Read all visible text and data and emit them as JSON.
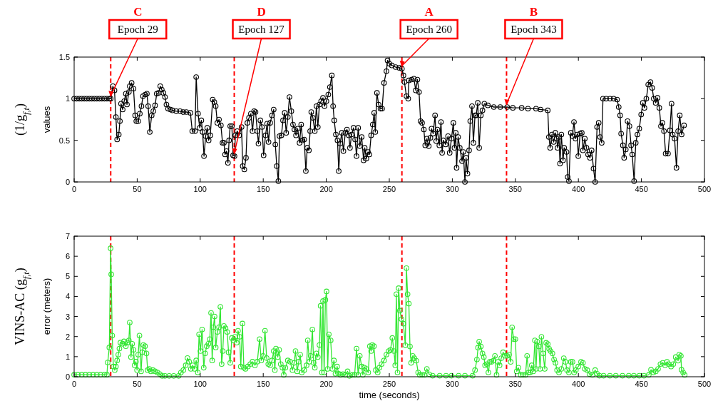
{
  "chart_data": [
    {
      "type": "line",
      "xlim": [
        0,
        500
      ],
      "xticks": [
        0,
        50,
        100,
        150,
        200,
        250,
        300,
        350,
        400,
        450,
        500
      ],
      "ylim": [
        0,
        1.5
      ],
      "yticks": [
        0,
        0.5,
        1,
        1.5
      ],
      "ylabel": "values",
      "marker": "circle",
      "line_style": "solid",
      "grid": false,
      "annotations": [
        "(1/g$_{f,t}$)",
        "C",
        "D",
        "A",
        "B",
        {
          "text": "Epoch 29",
          "x": 29,
          "y": 1
        },
        {
          "text": "Epoch 127",
          "x": 127,
          "y": 0.31
        },
        {
          "text": "Epoch 260",
          "x": 260,
          "y": 1.36
        },
        {
          "text": "Epoch 343",
          "x": 343,
          "y": 0.9
        }
      ],
      "ref_lines": [
        {
          "axis": "x",
          "value": 29,
          "color": "#ff0000",
          "line_style": "dashed"
        },
        {
          "axis": "x",
          "value": 127,
          "color": "#ff0000",
          "line_style": "dashed"
        },
        {
          "axis": "x",
          "value": 260,
          "color": "#ff0000",
          "line_style": "dashed"
        },
        {
          "axis": "x",
          "value": 343,
          "color": "#ff0000",
          "line_style": "dashed"
        }
      ],
      "series": [
        {
          "color": "#000000",
          "x": [
            0,
            2,
            4,
            6,
            8,
            10,
            12,
            14,
            16,
            18,
            20,
            22,
            24,
            26,
            28,
            29,
            30.7,
            32,
            33.1,
            34.1,
            35.4,
            36.3,
            37.2,
            38.5,
            39.7,
            41,
            41.9,
            43.4,
            44.1,
            45.6,
            47.1,
            48.4,
            49.3,
            50.8,
            52.1,
            53.4,
            54.6,
            56.4,
            57.7,
            58.7,
            60,
            61.5,
            62.8,
            64.2,
            65.5,
            67,
            68.3,
            69.5,
            70.8,
            72.1,
            73.2,
            74.5,
            76.4,
            78,
            81,
            84,
            86.6,
            89,
            92.2,
            93.7,
            95.9,
            96.8,
            98.3,
            99.6,
            100.9,
            101.9,
            103,
            104.3,
            105.6,
            106.7,
            108,
            109.9,
            111.2,
            112.3,
            113.6,
            114.9,
            116.4,
            117.7,
            118.8,
            119.7,
            120.9,
            122,
            122.9,
            123.8,
            125.1,
            126.1,
            127.2,
            127.9,
            129.4,
            130.9,
            132.8,
            133.7,
            135,
            136.3,
            137.4,
            138.7,
            140.2,
            141.5,
            142.8,
            143.9,
            145.3,
            146.2,
            147.7,
            149,
            150.3,
            151.8,
            153.1,
            154.2,
            155.5,
            157,
            158.3,
            159.6,
            160.7,
            162,
            162.9,
            164.4,
            165.7,
            167,
            168.2,
            169.5,
            170.8,
            172.3,
            173.6,
            174.7,
            176,
            177.3,
            178.8,
            180.1,
            181.2,
            182.5,
            183.8,
            184.9,
            186.2,
            187.2,
            188.1,
            189.4,
            190.9,
            192.2,
            193.3,
            194.6,
            195.9,
            197.4,
            198.6,
            200.1,
            201.6,
            202.9,
            204.4,
            205.4,
            206.3,
            207.6,
            208.9,
            209.9,
            211,
            212.3,
            213.6,
            215.1,
            216.4,
            217.9,
            218.8,
            220.1,
            221.6,
            222.9,
            224,
            225.3,
            226.6,
            228.1,
            229.6,
            230.5,
            231.8,
            233.1,
            234.2,
            235.6,
            236.9,
            238,
            238.9,
            240.2,
            241.5,
            243,
            244.3,
            245.8,
            247.7,
            248.6,
            250,
            252,
            255,
            258,
            260,
            261.2,
            262,
            263.6,
            265,
            265.5,
            267.7,
            269.5,
            271,
            272.3,
            273.6,
            274.8,
            276,
            277.4,
            278.5,
            279.8,
            281.3,
            282.6,
            283.5,
            284.8,
            286.3,
            287.2,
            288.2,
            289.7,
            291,
            291.9,
            292.8,
            294.7,
            296.6,
            297.9,
            299.3,
            300.8,
            301.7,
            302.7,
            303.4,
            304.6,
            305.9,
            307.7,
            308.7,
            310,
            310.9,
            312,
            313.3,
            314.2,
            315.6,
            316.7,
            318,
            318.9,
            320.2,
            321.3,
            322.6,
            323.9,
            325.4,
            328.2,
            332.9,
            338,
            343.5,
            348,
            355,
            360,
            366.4,
            370,
            375.7,
            376.6,
            377.6,
            379,
            380.4,
            381.7,
            382.8,
            383.5,
            384.6,
            385.4,
            386.5,
            387.8,
            388.7,
            390.6,
            391.5,
            392.5,
            394,
            395.2,
            396.5,
            397.7,
            399,
            399.9,
            401.4,
            402.7,
            403.6,
            405.1,
            406.4,
            407.7,
            409.2,
            410.5,
            412,
            413.3,
            414.8,
            416.1,
            417.2,
            418.5,
            419.5,
            422,
            425.1,
            428,
            430.7,
            432,
            433.1,
            433.9,
            435.3,
            436.3,
            437.6,
            439,
            440.5,
            441.8,
            442.7,
            444.2,
            445.5,
            446.8,
            448.3,
            449.8,
            451.1,
            452.4,
            453.9,
            455.4,
            457.2,
            458.5,
            459.8,
            461.3,
            462.8,
            464.2,
            465.5,
            466.6,
            467.9,
            469.2,
            471.1,
            472.6,
            473.9,
            474.8,
            476.3,
            477.8,
            479.1,
            480.4,
            481.9,
            483.8
          ],
          "values": [
            1,
            1,
            1,
            1,
            1,
            1,
            1,
            1,
            1,
            1,
            1,
            1,
            1,
            1,
            1,
            1,
            1.15,
            1.1,
            0.78,
            0.51,
            0.57,
            0.73,
            0.94,
            0.87,
            0.97,
            1.06,
            0.93,
            1.08,
            1.15,
            1.19,
            1.12,
            0.8,
            0.73,
            0.73,
            0.82,
            0.91,
            1.03,
            1.05,
            1.06,
            0.91,
            0.6,
            0.8,
            0.85,
            0.92,
            1.06,
            1.07,
            1.15,
            1.11,
            1.07,
            1.02,
            0.93,
            0.88,
            0.87,
            0.86,
            0.85,
            0.85,
            0.84,
            0.84,
            0.83,
            0.61,
            0.61,
            1.26,
            0.82,
            0.65,
            0.74,
            0.6,
            0.31,
            0.55,
            0.65,
            0.5,
            0.56,
            0.99,
            0.96,
            0.91,
            0.71,
            0.75,
            0.68,
            0.47,
            0.47,
            0.33,
            0.37,
            0.23,
            0.5,
            0.67,
            0.67,
            0.32,
            0.31,
            0.56,
            0.61,
            0.56,
            0.66,
            0.19,
            0.15,
            0.29,
            0.71,
            0.77,
            0.82,
            0.61,
            0.85,
            0.84,
            0.61,
            0.46,
            0.74,
            0.66,
            0.32,
            0.56,
            0.7,
            0.48,
            0.71,
            0.8,
            0.87,
            0.45,
            0.19,
            0.01,
            0.55,
            0.56,
            0.74,
            0.83,
            0.59,
            0.78,
            1.02,
            0.85,
            0.69,
            0.63,
            0.56,
            0.64,
            0.47,
            0.69,
            0.5,
            0.51,
            0.13,
            0.41,
            0.38,
            0.61,
            0.84,
            0.77,
            0.61,
            0.91,
            0.66,
            0.93,
            0.97,
            1.01,
            0.91,
            0.97,
            1.05,
            1.14,
            1.28,
            0.91,
            0.74,
            0.57,
            0.5,
            0.13,
            0.46,
            0.59,
            0.37,
            0.59,
            0.63,
            0.56,
            0.41,
            0.57,
            0.65,
            0.51,
            0.31,
            0.65,
            0.43,
            0.54,
            0.26,
            0.41,
            0.28,
            0.36,
            0.33,
            0.56,
            0.69,
            0.83,
            0.6,
            1.07,
            0.93,
            0.88,
            0.88,
            1.19,
            1.33,
            1.46,
            1.42,
            1.4,
            1.38,
            1.37,
            1.36,
            1.28,
            1.2,
            1.03,
            1.0,
            1.22,
            1.23,
            1.24,
            1.1,
            1.23,
            1.08,
            0.73,
            0.71,
            0.63,
            0.44,
            0.52,
            0.43,
            0.53,
            0.64,
            0.58,
            0.8,
            0.49,
            0.63,
            0.44,
            0.72,
            0.35,
            0.5,
            0.45,
            0.55,
            0.35,
            0.52,
            0.71,
            0.41,
            0.59,
            0.17,
            0.54,
            0.41,
            0.25,
            0.36,
            0,
            0.29,
            0.1,
            0.38,
            0.73,
            0.91,
            0.47,
            0.8,
            0.8,
            0.95,
            0.41,
            0.8,
            0.86,
            0.94,
            0.92,
            0.9,
            0.9,
            0.9,
            0.89,
            0.89,
            0.88,
            0.88,
            0.87,
            0.86,
            0.54,
            0.41,
            0.57,
            0.48,
            0.59,
            0.52,
            0.41,
            0.54,
            0.22,
            0.57,
            0.26,
            0.41,
            0.36,
            0.06,
            0.01,
            0.59,
            0.55,
            0.72,
            0.52,
            0.57,
            0.31,
            0.58,
            0.59,
            0.38,
            0.52,
            0.41,
            0.33,
            0.29,
            0.38,
            0.16,
            0,
            0.66,
            0.71,
            0.54,
            0.47,
            1.0,
            1.0,
            1.0,
            1.0,
            0.99,
            0.9,
            0.8,
            0.58,
            0.44,
            0.29,
            0.39,
            0.73,
            0.67,
            0.44,
            0.33,
            0.01,
            0.47,
            0.57,
            0.64,
            0.81,
            0.95,
            0.89,
            1.0,
            1.17,
            1.2,
            1.13,
            1.0,
            0.95,
            1.01,
            0.89,
            0.67,
            0.71,
            0.61,
            0.34,
            0.34,
            0.62,
            0.94,
            0.57,
            0.52,
            0.17,
            0.61,
            0.8,
            0.57,
            0.68
          ]
        }
      ]
    },
    {
      "type": "line",
      "xlim": [
        0,
        500
      ],
      "xticks": [
        0,
        50,
        100,
        150,
        200,
        250,
        300,
        350,
        400,
        450,
        500
      ],
      "ylim": [
        0,
        7
      ],
      "yticks": [
        0,
        1,
        2,
        3,
        4,
        5,
        6,
        7
      ],
      "xlabel": "time (seconds)",
      "ylabel": "error (meters)",
      "marker": "circle",
      "line_style": "solid",
      "grid": false,
      "annotations": [
        "VINS-AC (g$_{f,t}$)"
      ],
      "ref_lines": [
        {
          "axis": "x",
          "value": 29,
          "color": "#ff0000",
          "line_style": "dashed"
        },
        {
          "axis": "x",
          "value": 127,
          "color": "#ff0000",
          "line_style": "dashed"
        },
        {
          "axis": "x",
          "value": 260,
          "color": "#ff0000",
          "line_style": "dashed"
        },
        {
          "axis": "x",
          "value": 343,
          "color": "#ff0000",
          "line_style": "dashed"
        }
      ],
      "series": [
        {
          "color": "#33e633",
          "x": [
            0,
            3,
            6,
            9,
            12,
            15,
            18,
            21,
            24,
            26,
            26.6,
            27.9,
            28.9,
            29.4,
            30.2,
            31.1,
            32.2,
            33.1,
            34.1,
            35,
            35.9,
            36.7,
            38.2,
            39.5,
            41,
            42.3,
            43.4,
            44.1,
            45.1,
            46,
            47.1,
            48,
            49,
            49.9,
            50.8,
            51.8,
            53.1,
            54,
            54.9,
            56.2,
            57.4,
            58.3,
            59.6,
            60.9,
            62.4,
            64.2,
            66.1,
            68,
            69.8,
            72,
            75.4,
            79,
            82.9,
            84.7,
            86.6,
            88.5,
            89.9,
            91.2,
            92.6,
            94,
            95.5,
            96.8,
            98.1,
            99.1,
            100.2,
            101.5,
            102.8,
            103.9,
            105.2,
            106.5,
            107.6,
            108.6,
            109.5,
            110.4,
            111.4,
            112.3,
            113.6,
            114.9,
            116,
            117,
            117.9,
            118.8,
            120.1,
            121.4,
            122.5,
            123.8,
            125.1,
            126.3,
            127.6,
            128.9,
            130,
            131.3,
            132.2,
            133.5,
            134.6,
            135.9,
            137.8,
            139.7,
            141.5,
            143.4,
            145.3,
            147.1,
            148.4,
            149.9,
            151.4,
            152.7,
            154,
            155.5,
            157,
            158.3,
            159.2,
            160.1,
            161.5,
            162.6,
            163.9,
            165.2,
            166.3,
            167.6,
            169.5,
            171.3,
            173.2,
            174.5,
            175.6,
            176.9,
            178.2,
            179.3,
            180.6,
            182.5,
            184.4,
            185.3,
            186.6,
            187.7,
            189,
            190,
            190.9,
            192.2,
            193.3,
            194.6,
            195.5,
            196.5,
            197.4,
            198.3,
            199.3,
            200.2,
            201.1,
            202,
            203.5,
            204.8,
            206.1,
            207.3,
            208.6,
            209.9,
            211.4,
            213.2,
            215.1,
            216.9,
            218.4,
            220.7,
            222.5,
            224,
            225.3,
            226.6,
            228.1,
            229,
            230.3,
            231.8,
            233.3,
            234.6,
            235.6,
            236.5,
            237.8,
            239.3,
            240.8,
            242.1,
            243.9,
            245.8,
            247.7,
            249.5,
            250.9,
            252.4,
            253.7,
            254.7,
            255.6,
            256.5,
            257.4,
            258.4,
            259.7,
            261.2,
            262.7,
            263.6,
            264.5,
            265.5,
            266.4,
            267.3,
            268.6,
            269.9,
            271.4,
            272.9,
            274.2,
            276.1,
            277.9,
            279.8,
            281.7,
            284.4,
            290,
            295,
            299.3,
            305,
            310,
            316.1,
            318,
            319.5,
            320.4,
            321.3,
            322.6,
            323.9,
            325,
            326,
            327.3,
            328.6,
            329.7,
            331,
            332.5,
            333.8,
            335.1,
            336.2,
            337.5,
            338.8,
            340.3,
            341.8,
            343.5,
            345,
            346.3,
            347.4,
            348.7,
            350,
            351.1,
            352.4,
            354.3,
            356.1,
            358,
            359.3,
            360.4,
            361.7,
            363,
            364.2,
            365.5,
            366.4,
            367.3,
            368.6,
            369.6,
            370.7,
            372,
            373.3,
            374.4,
            375.7,
            376.8,
            377.9,
            379.4,
            380.7,
            381.8,
            383.1,
            384.6,
            386.5,
            388.4,
            389.7,
            391,
            392.5,
            394,
            395.3,
            396.6,
            398,
            399.9,
            402.1,
            403.6,
            405.1,
            407,
            408.8,
            411.1,
            413.3,
            414.8,
            416.7,
            420,
            425,
            429.7,
            435,
            440,
            444,
            448.3,
            452,
            455.8,
            457.6,
            459.5,
            461.4,
            463.2,
            465.1,
            466.9,
            468.8,
            470.3,
            471.6,
            473.5,
            475.3,
            477.2,
            479.1,
            480,
            481.3,
            481.8,
            483.1,
            484.3
          ],
          "values": [
            0.1,
            0.1,
            0.1,
            0.1,
            0.1,
            0.1,
            0.1,
            0.1,
            0.1,
            0.1,
            0.71,
            1.46,
            6.4,
            5.1,
            2.05,
            0.51,
            0.33,
            0.51,
            0.81,
            1.1,
            1.4,
            1.7,
            1.64,
            1.76,
            1.52,
            1.7,
            1.81,
            2.7,
            0.98,
            1.64,
            1.34,
            0.57,
            0.75,
            0.33,
            1.1,
            2.05,
            0.27,
            1.22,
            1.58,
            1.52,
            1.16,
            0.33,
            0.39,
            0.27,
            0.33,
            0.27,
            0.21,
            0.13,
            0.04,
            0.04,
            0.04,
            0.04,
            0.04,
            0.21,
            0.33,
            0.57,
            0.93,
            0.75,
            0.39,
            0.57,
            0.39,
            0.81,
            0.21,
            2.11,
            1.28,
            2.35,
            0.45,
            1.16,
            1.52,
            1.64,
            1.87,
            3.18,
            0.81,
            2.47,
            3.0,
            1.46,
            2.23,
            2.47,
            3.48,
            0.63,
            1.28,
            2.53,
            2.41,
            2.23,
            1.22,
            0.69,
            1.93,
            1.81,
            1.99,
            1.7,
            2.29,
            1.99,
            0.51,
            2.65,
            0.45,
            0.39,
            0.51,
            0.63,
            0.75,
            0.57,
            0.75,
            1.87,
            0.81,
            1.04,
            2.29,
            0.93,
            0.63,
            0.57,
            0.81,
            1.28,
            0.33,
            1.4,
            0.98,
            1.34,
            0.63,
            0.45,
            0.09,
            0.45,
            0.81,
            0.75,
            0.33,
            0.69,
            1.28,
            0.27,
            0.75,
            1.1,
            0.21,
            0.33,
            0.57,
            1.81,
            0.75,
            1.04,
            2.35,
            0.69,
            0.45,
            1.16,
            0.98,
            1.58,
            3.53,
            0.21,
            3.77,
            0.21,
            3.83,
            4.25,
            0.39,
            2.11,
            1.81,
            0.39,
            0.81,
            0.15,
            0.51,
            0.15,
            0.09,
            0.13,
            0.09,
            0.27,
            0.04,
            0.09,
            0.09,
            1.4,
            0.09,
            1.04,
            0.51,
            0.09,
            0.45,
            0.39,
            0.21,
            1.52,
            1.28,
            1.58,
            1.52,
            0.33,
            0.21,
            0.45,
            0.63,
            0.81,
            1.1,
            1.28,
            1.34,
            1.93,
            1.28,
            0.57,
            4.11,
            0.21,
            4.41,
            3.29,
            2.87,
            2.64,
            1.57,
            5.41,
            4.11,
            3.64,
            1.51,
            0.69,
            1.04,
            0.92,
            0.8,
            0.21,
            0.09,
            0.09,
            0.09,
            0.39,
            0.12,
            0.05,
            0.05,
            0.05,
            0.05,
            0.05,
            0.05,
            0.05,
            0.33,
            0.86,
            1.45,
            1.75,
            1.51,
            1.16,
            0.98,
            0.57,
            0.63,
            0.21,
            0.74,
            0.74,
            0.8,
            1.04,
            0.09,
            0.74,
            0.57,
            0.92,
            1.22,
            1.04,
            1.04,
            1.1,
            0.74,
            2.46,
            1.87,
            1.87,
            0.27,
            0.45,
            0.09,
            0.09,
            0.09,
            1.04,
            0.21,
            0.21,
            0.57,
            0.27,
            1.81,
            0.39,
            1.75,
            1.51,
            0.39,
            1.99,
            1.16,
            0.39,
            1.69,
            1.63,
            1.39,
            1.28,
            1.16,
            0.86,
            0.69,
            0.33,
            0.21,
            0.39,
            0.92,
            0.74,
            0.33,
            0.21,
            0.74,
            0.74,
            0.21,
            0.33,
            0.51,
            0.74,
            0.69,
            0.39,
            0.33,
            0.13,
            0.09,
            0.33,
            0.15,
            0.05,
            0.05,
            0.05,
            0.05,
            0.05,
            0.05,
            0.05,
            0.05,
            0.05,
            0.09,
            0.35,
            0.21,
            0.27,
            0.39,
            0.63,
            0.69,
            0.57,
            0.74,
            0.63,
            0.51,
            0.63,
            0.98,
            0.8,
            1.1,
            1.04,
            0.35,
            0.21,
            0.09
          ]
        }
      ]
    }
  ]
}
